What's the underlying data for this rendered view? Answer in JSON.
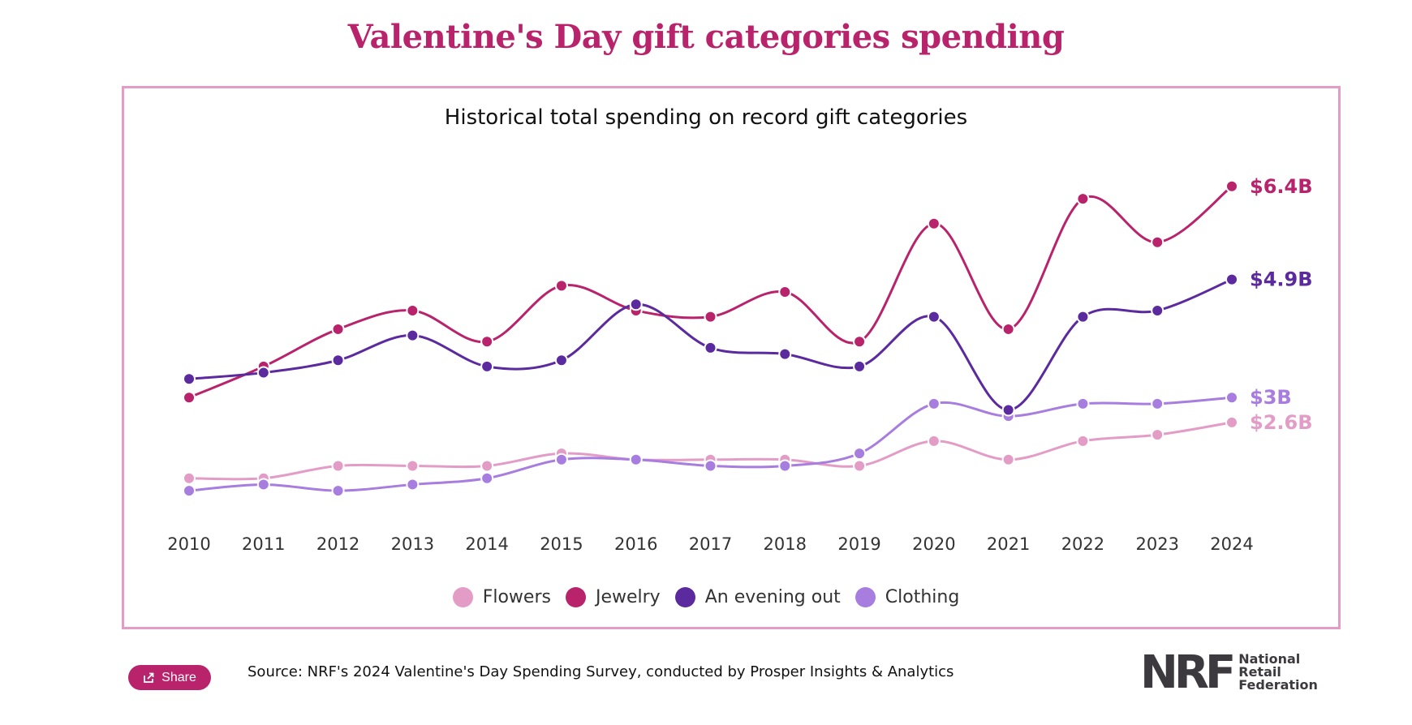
{
  "title": "Valentine's Day gift categories spending",
  "share_label": "Share",
  "source": "Source: NRF's 2024 Valentine's Day Spending Survey, conducted by Prosper Insights & Analytics",
  "logo": {
    "mark": "NRF",
    "line1": "National",
    "line2": "Retail",
    "line3": "Federation"
  },
  "chart_data": {
    "type": "line",
    "title": "Historical total spending on record gift categories",
    "xlabel": "",
    "ylabel": "",
    "x": [
      "2010",
      "2011",
      "2012",
      "2013",
      "2014",
      "2015",
      "2016",
      "2017",
      "2018",
      "2019",
      "2020",
      "2021",
      "2022",
      "2023",
      "2024"
    ],
    "ylim": [
      0,
      7
    ],
    "grid": false,
    "legend_position": "bottom",
    "series": [
      {
        "name": "Flowers",
        "color": "#e39cc6",
        "end_label": "$2.6B",
        "values": [
          1.7,
          1.7,
          1.9,
          1.9,
          1.9,
          2.1,
          2.0,
          2.0,
          2.0,
          1.9,
          2.3,
          2.0,
          2.3,
          2.4,
          2.6
        ]
      },
      {
        "name": "Jewelry",
        "color": "#b8236b",
        "end_label": "$6.4B",
        "values": [
          3.0,
          3.5,
          4.1,
          4.4,
          3.9,
          4.8,
          4.4,
          4.3,
          4.7,
          3.9,
          5.8,
          4.1,
          6.2,
          5.5,
          6.4
        ]
      },
      {
        "name": "An evening out",
        "color": "#5b2a9e",
        "end_label": "$4.9B",
        "values": [
          3.3,
          3.4,
          3.6,
          4.0,
          3.5,
          3.6,
          4.5,
          3.8,
          3.7,
          3.5,
          4.3,
          2.8,
          4.3,
          4.4,
          4.9
        ]
      },
      {
        "name": "Clothing",
        "color": "#a77ddf",
        "end_label": "$3B",
        "values": [
          1.5,
          1.6,
          1.5,
          1.6,
          1.7,
          2.0,
          2.0,
          1.9,
          1.9,
          2.1,
          2.9,
          2.7,
          2.9,
          2.9,
          3.0
        ]
      }
    ]
  }
}
